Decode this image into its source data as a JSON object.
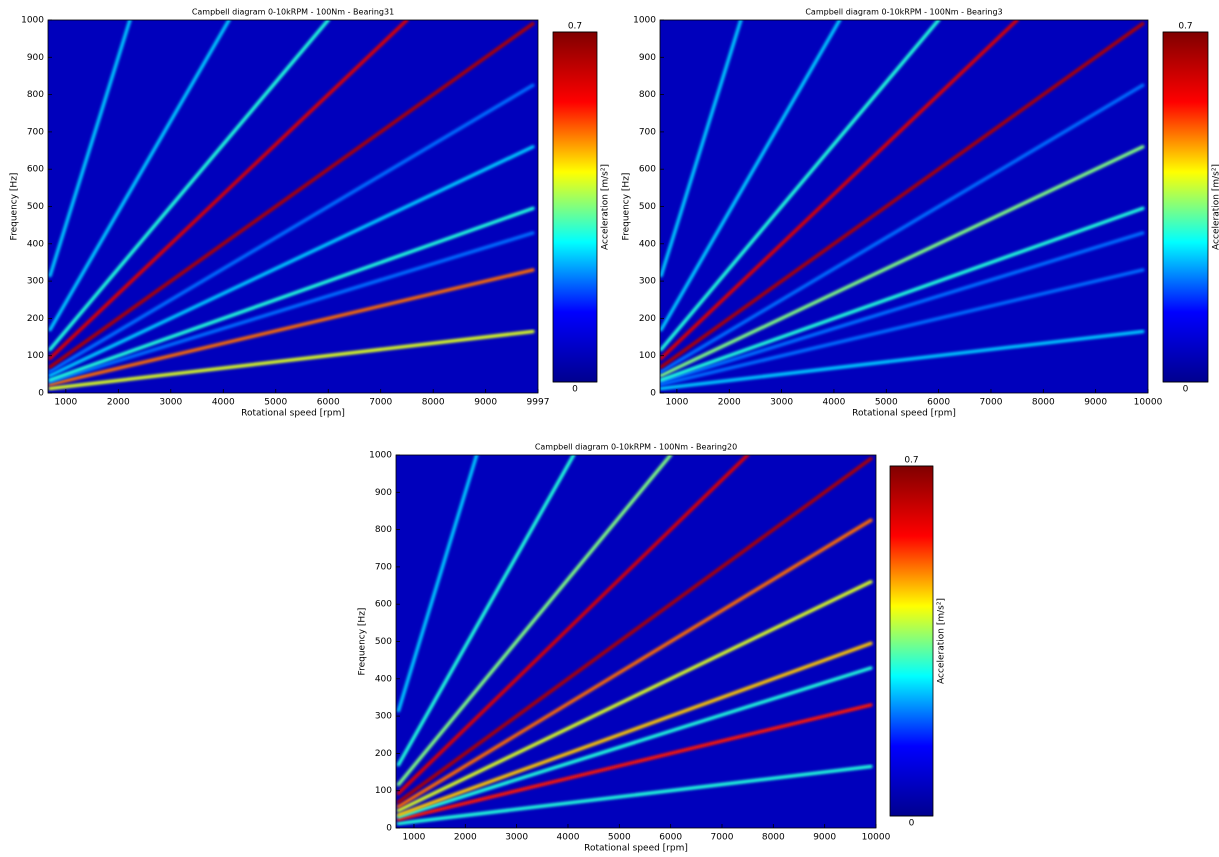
{
  "chart_data": [
    {
      "type": "heatmap",
      "title": "Campbell diagram 0-10kRPM - 100Nm - Bearing31",
      "xlabel": "Rotational speed [rpm]",
      "ylabel": "Frequency [Hz]",
      "colorbar_label": "Acceleration [m/s²]",
      "xlim": [
        660,
        9997
      ],
      "xticks": [
        1000,
        2000,
        3000,
        4000,
        5000,
        6000,
        7000,
        8000,
        9000,
        9997
      ],
      "ylim": [
        0,
        1000
      ],
      "yticks": [
        0,
        100,
        200,
        300,
        400,
        500,
        600,
        700,
        800,
        900,
        1000
      ],
      "clim": [
        0,
        0.7
      ],
      "cticks": [
        0,
        0.7
      ],
      "colormap": [
        "#00008f",
        "#0000ff",
        "#00ffff",
        "#ffff00",
        "#ff0000",
        "#800000"
      ],
      "ridges": [
        {
          "x": [
            700,
            9900
          ],
          "y": [
            12,
            165
          ],
          "value": 0.4
        },
        {
          "x": [
            700,
            9900
          ],
          "y": [
            23,
            330
          ],
          "value": 0.5
        },
        {
          "x": [
            700,
            9900
          ],
          "y": [
            30,
            429
          ],
          "value": 0.2
        },
        {
          "x": [
            700,
            9900
          ],
          "y": [
            35,
            495
          ],
          "value": 0.3
        },
        {
          "x": [
            700,
            9900
          ],
          "y": [
            47,
            660
          ],
          "value": 0.25
        },
        {
          "x": [
            700,
            9900
          ],
          "y": [
            58,
            825
          ],
          "value": 0.2
        },
        {
          "x": [
            700,
            9900
          ],
          "y": [
            70,
            990
          ],
          "value": 0.65
        },
        {
          "x": [
            700,
            7500
          ],
          "y": [
            93,
            1000
          ],
          "value": 0.6
        },
        {
          "x": [
            700,
            6000
          ],
          "y": [
            117,
            1000
          ],
          "value": 0.3
        },
        {
          "x": [
            700,
            4110
          ],
          "y": [
            170,
            1000
          ],
          "value": 0.25
        },
        {
          "x": [
            700,
            2222
          ],
          "y": [
            315,
            1000
          ],
          "value": 0.25
        }
      ]
    },
    {
      "type": "heatmap",
      "title": "Campbell diagram 0-10kRPM - 100Nm - Bearing3",
      "xlabel": "Rotational speed [rpm]",
      "ylabel": "Frequency [Hz]",
      "colorbar_label": "Acceleration [m/s²]",
      "xlim": [
        677,
        10000
      ],
      "xticks": [
        1000,
        2000,
        3000,
        4000,
        5000,
        6000,
        7000,
        8000,
        9000,
        10000
      ],
      "ylim": [
        0,
        1000
      ],
      "yticks": [
        0,
        100,
        200,
        300,
        400,
        500,
        600,
        700,
        800,
        900,
        1000
      ],
      "clim": [
        0,
        0.7
      ],
      "cticks": [
        0,
        0.7
      ],
      "colormap": [
        "#00008f",
        "#0000ff",
        "#00ffff",
        "#ffff00",
        "#ff0000",
        "#800000"
      ],
      "ridges": [
        {
          "x": [
            700,
            9900
          ],
          "y": [
            12,
            165
          ],
          "value": 0.25
        },
        {
          "x": [
            700,
            9900
          ],
          "y": [
            23,
            330
          ],
          "value": 0.2
        },
        {
          "x": [
            700,
            9900
          ],
          "y": [
            30,
            429
          ],
          "value": 0.2
        },
        {
          "x": [
            700,
            9900
          ],
          "y": [
            35,
            495
          ],
          "value": 0.3
        },
        {
          "x": [
            700,
            9900
          ],
          "y": [
            47,
            660
          ],
          "value": 0.35
        },
        {
          "x": [
            700,
            9900
          ],
          "y": [
            58,
            825
          ],
          "value": 0.2
        },
        {
          "x": [
            700,
            9900
          ],
          "y": [
            70,
            990
          ],
          "value": 0.65
        },
        {
          "x": [
            700,
            7500
          ],
          "y": [
            93,
            1000
          ],
          "value": 0.6
        },
        {
          "x": [
            700,
            6000
          ],
          "y": [
            117,
            1000
          ],
          "value": 0.3
        },
        {
          "x": [
            700,
            4110
          ],
          "y": [
            170,
            1000
          ],
          "value": 0.25
        },
        {
          "x": [
            700,
            2222
          ],
          "y": [
            315,
            1000
          ],
          "value": 0.25
        }
      ]
    },
    {
      "type": "heatmap",
      "title": "Campbell diagram 0-10kRPM - 100Nm - Bearing20",
      "xlabel": "Rotational speed [rpm]",
      "ylabel": "Frequency [Hz]",
      "colorbar_label": "Acceleration [m/s²]",
      "xlim": [
        650,
        10000
      ],
      "xticks": [
        1000,
        2000,
        3000,
        4000,
        5000,
        6000,
        7000,
        8000,
        9000,
        10000
      ],
      "ylim": [
        0,
        1000
      ],
      "yticks": [
        0,
        100,
        200,
        300,
        400,
        500,
        600,
        700,
        800,
        900,
        1000
      ],
      "clim": [
        0,
        0.7
      ],
      "cticks": [
        0,
        0.7
      ],
      "colormap": [
        "#00008f",
        "#0000ff",
        "#00ffff",
        "#ffff00",
        "#ff0000",
        "#800000"
      ],
      "ridges": [
        {
          "x": [
            700,
            9900
          ],
          "y": [
            12,
            165
          ],
          "value": 0.3
        },
        {
          "x": [
            700,
            9900
          ],
          "y": [
            23,
            330
          ],
          "value": 0.55
        },
        {
          "x": [
            700,
            9900
          ],
          "y": [
            30,
            429
          ],
          "value": 0.3
        },
        {
          "x": [
            700,
            9900
          ],
          "y": [
            35,
            495
          ],
          "value": 0.45
        },
        {
          "x": [
            700,
            9900
          ],
          "y": [
            47,
            660
          ],
          "value": 0.4
        },
        {
          "x": [
            700,
            9900
          ],
          "y": [
            58,
            825
          ],
          "value": 0.5
        },
        {
          "x": [
            700,
            9900
          ],
          "y": [
            70,
            990
          ],
          "value": 0.65
        },
        {
          "x": [
            700,
            7500
          ],
          "y": [
            93,
            1000
          ],
          "value": 0.6
        },
        {
          "x": [
            700,
            6000
          ],
          "y": [
            117,
            1000
          ],
          "value": 0.35
        },
        {
          "x": [
            700,
            4110
          ],
          "y": [
            170,
            1000
          ],
          "value": 0.3
        },
        {
          "x": [
            700,
            2222
          ],
          "y": [
            315,
            1000
          ],
          "value": 0.25
        }
      ]
    }
  ]
}
